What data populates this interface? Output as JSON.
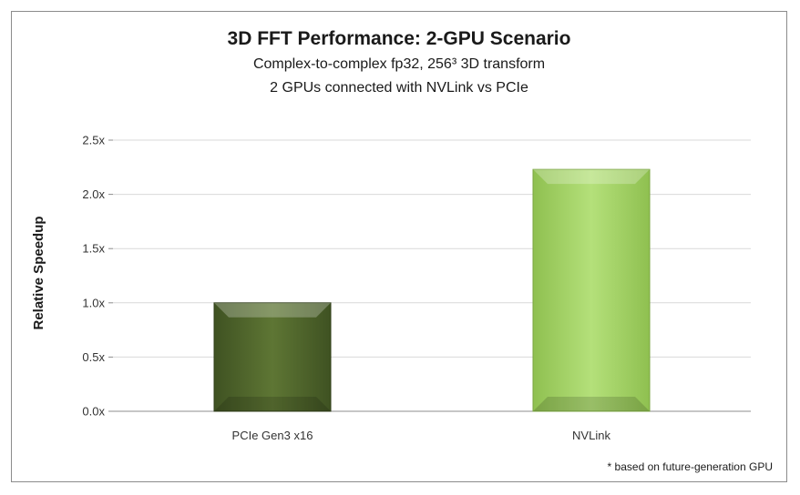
{
  "chart_data": {
    "type": "bar",
    "title": "3D FFT Performance: 2-GPU Scenario",
    "subtitles": [
      "Complex-to-complex fp32, 256³ 3D transform",
      "2 GPUs connected with NVLink vs PCIe"
    ],
    "ylabel": "Relative Speedup",
    "xlabel": "",
    "categories": [
      "PCIe Gen3 x16",
      "NVLink"
    ],
    "values": [
      1.0,
      2.23
    ],
    "ylim": [
      0,
      2.5
    ],
    "yticks": [
      0,
      0.5,
      1.0,
      1.5,
      2.0,
      2.5
    ],
    "ytick_labels": [
      "0.0x",
      "0.5x",
      "1.0x",
      "1.5x",
      "2.0x",
      "2.5x"
    ],
    "bar_colors": [
      "#556b2f",
      "#a9d86e"
    ],
    "grid": true,
    "legend": "none",
    "footnote": "* based on future-generation GPU"
  }
}
